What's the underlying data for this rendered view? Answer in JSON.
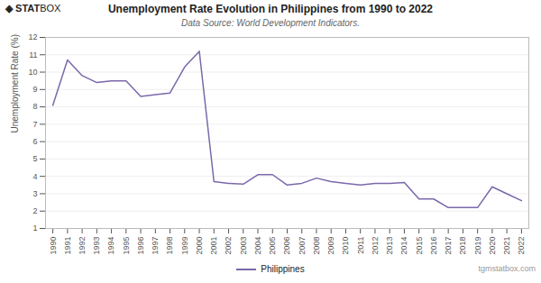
{
  "chart_data": {
    "type": "line",
    "title": "Unemployment Rate Evolution in Philippines from 1990 to 2022",
    "subtitle": "Data Source: World Development Indicators.",
    "ylabel": "Unemployment Rate (%)",
    "annotations": [
      "◈ STATBOX",
      "tgmstatbox.com"
    ],
    "x": [
      1990,
      1991,
      1992,
      1993,
      1994,
      1995,
      1996,
      1997,
      1998,
      1999,
      2000,
      2001,
      2002,
      2003,
      2004,
      2005,
      2006,
      2007,
      2008,
      2009,
      2010,
      2011,
      2012,
      2013,
      2014,
      2015,
      2016,
      2017,
      2018,
      2019,
      2020,
      2021,
      2022
    ],
    "series": [
      {
        "name": "Philippines",
        "color": "#7B68AA",
        "values": [
          8.1,
          10.7,
          9.8,
          9.4,
          9.5,
          9.5,
          8.6,
          8.7,
          8.8,
          10.3,
          11.2,
          3.7,
          3.6,
          3.55,
          4.1,
          4.1,
          3.5,
          3.6,
          3.9,
          3.7,
          3.6,
          3.5,
          3.6,
          3.6,
          3.65,
          2.7,
          2.7,
          2.2,
          2.2,
          2.2,
          3.4,
          3.0,
          2.6
        ]
      }
    ],
    "xlim": [
      1989.5,
      2022.5
    ],
    "xticks": [
      1990,
      1991,
      1992,
      1993,
      1994,
      1995,
      1996,
      1997,
      1998,
      1999,
      2000,
      2001,
      2002,
      2003,
      2004,
      2005,
      2006,
      2007,
      2008,
      2009,
      2010,
      2011,
      2012,
      2013,
      2014,
      2015,
      2016,
      2017,
      2018,
      2019,
      2020,
      2021,
      2022
    ],
    "ylim": [
      1,
      12
    ],
    "yticks": [
      1,
      2,
      3,
      4,
      5,
      6,
      7,
      8,
      9,
      10,
      11,
      12
    ],
    "grid": true,
    "legend": "bottom"
  }
}
